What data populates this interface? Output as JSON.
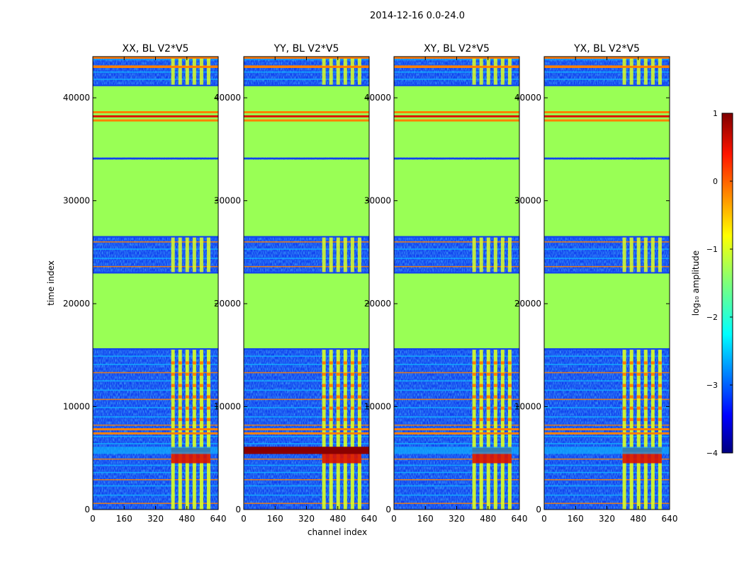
{
  "figure": {
    "suptitle": "2014-12-16 0.0-24.0",
    "ylabel": "time index",
    "xlabel": "channel index"
  },
  "chart_data": [
    {
      "type": "heatmap",
      "title": "XX, BL V2*V5",
      "xlim": [
        0,
        640
      ],
      "ylim": [
        0,
        44000
      ],
      "xticks": [
        0,
        160,
        320,
        480,
        640
      ],
      "yticks": [
        0,
        10000,
        20000,
        30000,
        40000
      ],
      "hot_channel_range": [
        400,
        600
      ],
      "constant_bands": [
        [
          15600,
          23000
        ],
        [
          26500,
          34000
        ],
        [
          34200,
          41200
        ]
      ]
    },
    {
      "type": "heatmap",
      "title": "YY, BL V2*V5",
      "xlim": [
        0,
        640
      ],
      "ylim": [
        0,
        44000
      ],
      "xticks": [
        0,
        160,
        320,
        480,
        640
      ],
      "yticks": [
        0,
        10000,
        20000,
        30000,
        40000
      ],
      "hot_channel_range": [
        400,
        600
      ],
      "constant_bands": [
        [
          15600,
          23000
        ],
        [
          26500,
          34000
        ],
        [
          34200,
          41200
        ]
      ]
    },
    {
      "type": "heatmap",
      "title": "XY, BL V2*V5",
      "xlim": [
        0,
        640
      ],
      "ylim": [
        0,
        44000
      ],
      "xticks": [
        0,
        160,
        320,
        480,
        640
      ],
      "yticks": [
        0,
        10000,
        20000,
        30000,
        40000
      ],
      "hot_channel_range": [
        400,
        600
      ],
      "constant_bands": [
        [
          15600,
          23000
        ],
        [
          26500,
          34000
        ],
        [
          34200,
          41200
        ]
      ]
    },
    {
      "type": "heatmap",
      "title": "YX, BL V2*V5",
      "xlim": [
        0,
        640
      ],
      "ylim": [
        0,
        44000
      ],
      "xticks": [
        0,
        160,
        320,
        480,
        640
      ],
      "yticks": [
        0,
        10000,
        20000,
        30000,
        40000
      ],
      "hot_channel_range": [
        400,
        600
      ],
      "constant_bands": [
        [
          15600,
          23000
        ],
        [
          26500,
          34000
        ],
        [
          34200,
          41200
        ]
      ]
    }
  ],
  "colorbar": {
    "label": "log₁₀ amplitude",
    "range": [
      -4,
      1
    ],
    "ticks": [
      1,
      0,
      -1,
      -2,
      -3,
      -4
    ],
    "tick_labels": [
      "1",
      "0",
      "−1",
      "−2",
      "−3",
      "−4"
    ]
  },
  "colors": {
    "constant_band": "#99ff55",
    "stripe_orange": "#ff8000",
    "stripe_red": "#dd1100",
    "noise_dark": "#1040ee",
    "noise_light": "#10b0ff",
    "hot_yellow": "#ddff22",
    "hot_red": "#8a0000"
  }
}
